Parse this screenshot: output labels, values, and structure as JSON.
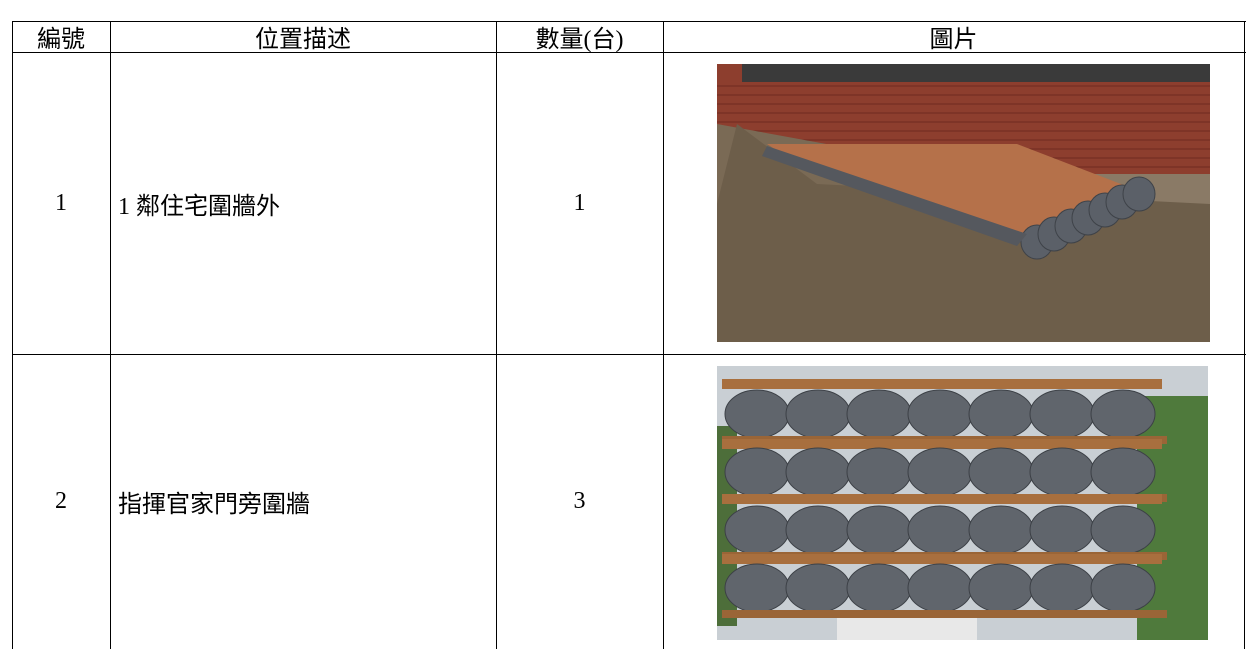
{
  "table": {
    "header": [
      "編號",
      "位置描述",
      "數量(台)",
      "圖片"
    ],
    "rows": [
      [
        "1",
        "1 鄰住宅圍牆外",
        "1"
      ],
      [
        "2",
        "指揮官家門旁圍牆",
        "3"
      ]
    ]
  }
}
